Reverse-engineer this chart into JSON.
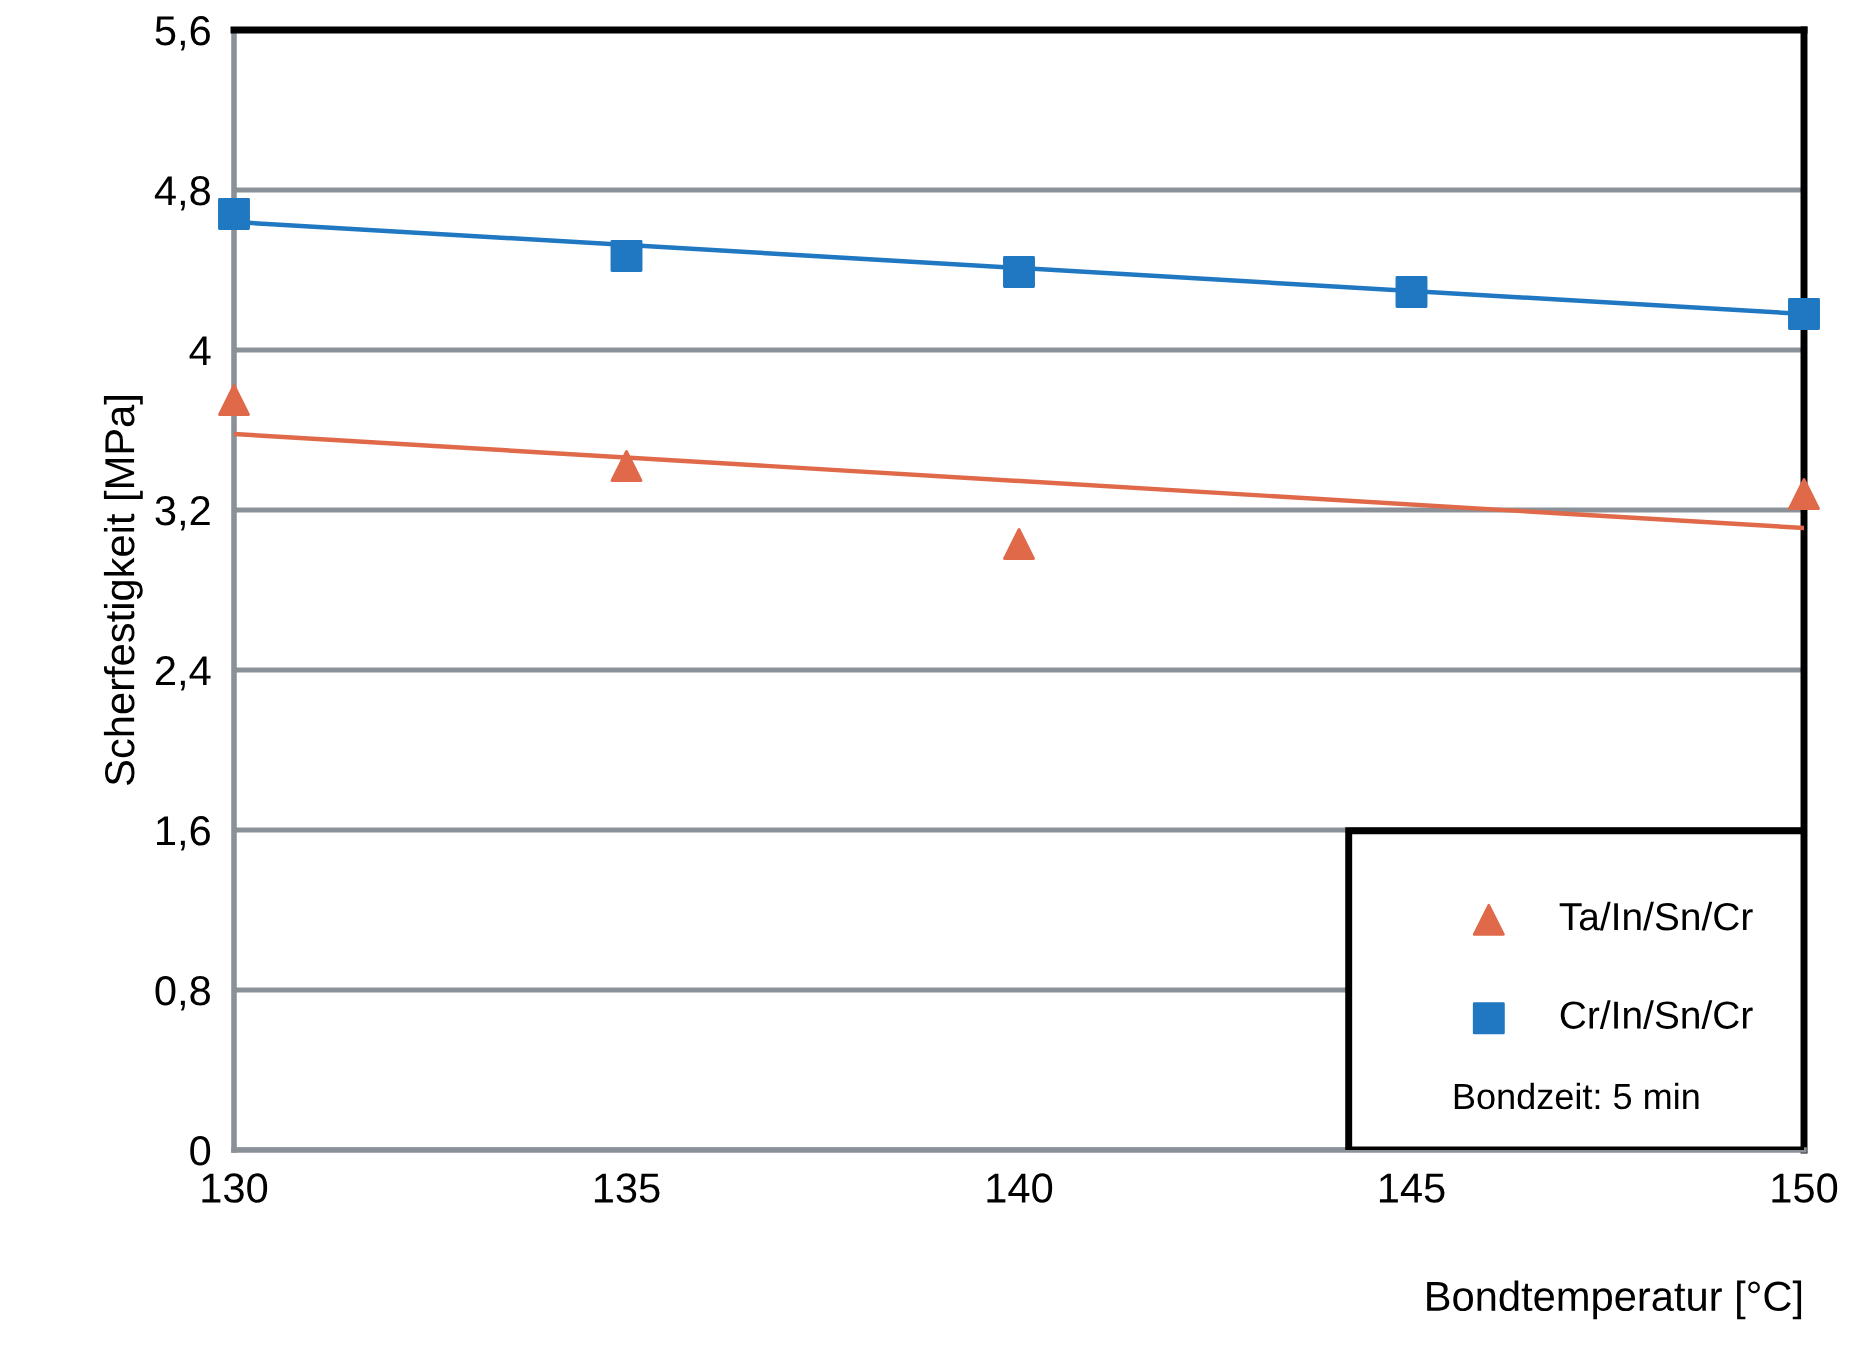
{
  "chart_data": {
    "type": "scatter",
    "xlabel": "Bondtemperatur [°C]",
    "ylabel": "Scherfestigkeit [MPa]",
    "xlim": [
      130,
      150
    ],
    "xticks": [
      130,
      135,
      140,
      145,
      150
    ],
    "ylim": [
      0,
      5.6
    ],
    "yticks": [
      0,
      {
        "value": 0.8,
        "label": "0,8"
      },
      {
        "value": 1.6,
        "label": "1,6"
      },
      {
        "value": 2.4,
        "label": "2,4"
      },
      {
        "value": 3.2,
        "label": "3,2"
      },
      4,
      {
        "value": 4.8,
        "label": "4,8"
      },
      {
        "value": 5.6,
        "label": "5,6"
      }
    ],
    "grid": "y",
    "legend": "bottom right",
    "series": [
      {
        "name": "Ta/In/Sn/Cr",
        "color": "#e0694a",
        "marker": "triangle",
        "x": [
          130,
          135,
          140,
          150
        ],
        "values": [
          3.75,
          3.42,
          3.03,
          3.28
        ]
      },
      {
        "name": "Cr/In/Sn/Cr",
        "color": "#1f78c1",
        "marker": "square",
        "x": [
          130,
          135,
          140,
          145,
          150
        ],
        "values": [
          4.68,
          4.47,
          4.39,
          4.29,
          4.18
        ]
      },
      {
        "type": "line",
        "color": "#e0694a",
        "x": [
          130,
          150
        ],
        "values": [
          3.58,
          3.11
        ]
      },
      {
        "type": "line",
        "color": "#1f78c1",
        "x": [
          130,
          150
        ],
        "values": [
          4.64,
          4.18
        ]
      }
    ],
    "annotations": [
      "Bondzeit: 5 min"
    ]
  }
}
